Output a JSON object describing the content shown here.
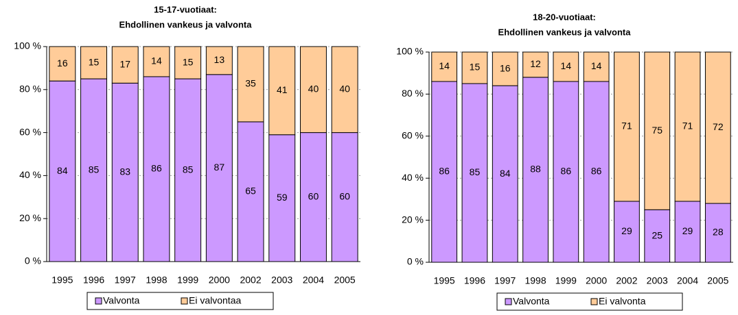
{
  "chart_data": [
    {
      "type": "bar",
      "stacked": true,
      "title": "15-17-vuotiaat:",
      "subtitle": "Ehdollinen vankeus ja valvonta",
      "categories": [
        "1995",
        "1996",
        "1997",
        "1998",
        "1999",
        "2000",
        "2002",
        "2003",
        "2004",
        "2005"
      ],
      "series": [
        {
          "name": "Valvonta",
          "color": "#cc99ff",
          "values": [
            84,
            85,
            83,
            86,
            85,
            87,
            65,
            59,
            60,
            60
          ]
        },
        {
          "name": "Ei valvontaa",
          "color": "#ffcc99",
          "values": [
            16,
            15,
            17,
            14,
            15,
            13,
            35,
            41,
            40,
            40
          ]
        }
      ],
      "ylim": [
        0,
        100
      ],
      "yticks": [
        {
          "value": 0,
          "label": "0 %"
        },
        {
          "value": 20,
          "label": "20 %"
        },
        {
          "value": 40,
          "label": "40 %"
        },
        {
          "value": 60,
          "label": "60 %"
        },
        {
          "value": 80,
          "label": "80 %"
        },
        {
          "value": 100,
          "label": "100 %"
        }
      ],
      "grid": true,
      "legend": "bottom"
    },
    {
      "type": "bar",
      "stacked": true,
      "title": "18-20-vuotiaat:",
      "subtitle": "Ehdollinen vankeus ja valvonta",
      "categories": [
        "1995",
        "1996",
        "1997",
        "1998",
        "1999",
        "2000",
        "2002",
        "2003",
        "2004",
        "2005"
      ],
      "series": [
        {
          "name": "Valvonta",
          "color": "#cc99ff",
          "values": [
            86,
            85,
            84,
            88,
            86,
            86,
            29,
            25,
            29,
            28
          ]
        },
        {
          "name": "Ei valvonta",
          "color": "#ffcc99",
          "values": [
            14,
            15,
            16,
            12,
            14,
            14,
            71,
            75,
            71,
            72
          ]
        }
      ],
      "ylim": [
        0,
        100
      ],
      "yticks": [
        {
          "value": 0,
          "label": "0 %"
        },
        {
          "value": 20,
          "label": "20 %"
        },
        {
          "value": 40,
          "label": "40 %"
        },
        {
          "value": 60,
          "label": "60 %"
        },
        {
          "value": 80,
          "label": "80 %"
        },
        {
          "value": 100,
          "label": "100 %"
        }
      ],
      "grid": true,
      "legend": "bottom"
    }
  ]
}
